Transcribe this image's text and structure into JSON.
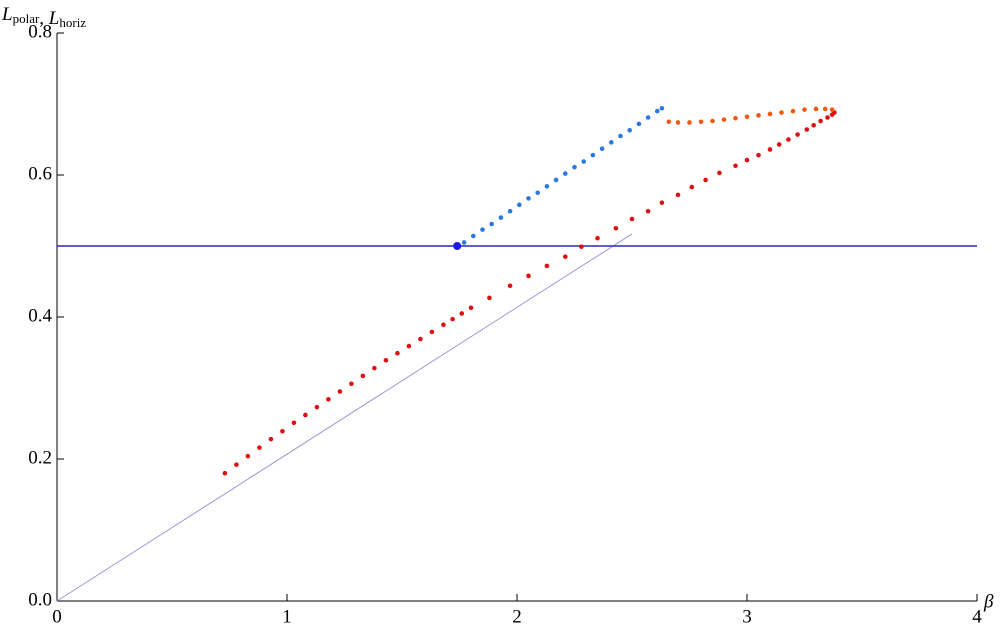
{
  "chart_data": {
    "type": "scatter",
    "ylabel": [
      {
        "symbol": "L",
        "subscript": "polar"
      },
      {
        "symbol": "L",
        "subscript": "horiz"
      }
    ],
    "ylabel_separator": ", ",
    "xlabel": "β",
    "xlim": [
      0,
      4
    ],
    "ylim": [
      0,
      0.8
    ],
    "xticks": [
      0,
      1,
      2,
      3,
      4
    ],
    "yticks": [
      {
        "value": 0,
        "label": "0.0"
      },
      0.2,
      0.4,
      0.6,
      0.8
    ],
    "grid": false,
    "series": [
      {
        "mode": "line",
        "color": "#9a9ad8",
        "width": 1,
        "x": [
          0,
          2.5
        ],
        "y": [
          0,
          0.517
        ]
      },
      {
        "mode": "line",
        "color": "#2a2ab4",
        "width": 1.5,
        "x": [
          0,
          4
        ],
        "y": [
          0.5,
          0.5
        ]
      },
      {
        "mode": "markers",
        "color": "#e01010",
        "radius": 2.3,
        "x": [
          0.73,
          0.78,
          0.83,
          0.88,
          0.93,
          0.98,
          1.03,
          1.08,
          1.13,
          1.18,
          1.23,
          1.28,
          1.33,
          1.38,
          1.43,
          1.48,
          1.53,
          1.58,
          1.63,
          1.68,
          1.72,
          1.76,
          1.8,
          1.88,
          1.97,
          2.05,
          2.13,
          2.21,
          2.28,
          2.35,
          2.43,
          2.5,
          2.57,
          2.63,
          2.7,
          2.76,
          2.82,
          2.88,
          2.95,
          3.0,
          3.05,
          3.1,
          3.14,
          3.18,
          3.22,
          3.26,
          3.29,
          3.32,
          3.35,
          3.37,
          3.38
        ],
        "y": [
          0.18,
          0.192,
          0.204,
          0.216,
          0.228,
          0.239,
          0.251,
          0.262,
          0.273,
          0.284,
          0.295,
          0.306,
          0.317,
          0.328,
          0.339,
          0.349,
          0.359,
          0.369,
          0.379,
          0.389,
          0.397,
          0.405,
          0.413,
          0.427,
          0.444,
          0.458,
          0.472,
          0.485,
          0.499,
          0.511,
          0.525,
          0.538,
          0.549,
          0.561,
          0.572,
          0.583,
          0.593,
          0.603,
          0.613,
          0.621,
          0.628,
          0.636,
          0.643,
          0.65,
          0.657,
          0.664,
          0.67,
          0.676,
          0.681,
          0.685,
          0.688
        ]
      },
      {
        "mode": "markers",
        "color": "#f05a10",
        "radius": 2.3,
        "x": [
          2.66,
          2.7,
          2.75,
          2.8,
          2.85,
          2.9,
          2.95,
          3.0,
          3.05,
          3.1,
          3.15,
          3.2,
          3.25,
          3.3,
          3.34,
          3.37
        ],
        "y": [
          0.675,
          0.674,
          0.674,
          0.675,
          0.676,
          0.678,
          0.68,
          0.682,
          0.684,
          0.686,
          0.688,
          0.69,
          0.692,
          0.693,
          0.693,
          0.692
        ]
      },
      {
        "mode": "markers",
        "color": "#2a78e0",
        "radius": 2.3,
        "x": [
          1.77,
          1.81,
          1.85,
          1.89,
          1.93,
          1.97,
          2.01,
          2.05,
          2.09,
          2.13,
          2.17,
          2.21,
          2.25,
          2.29,
          2.33,
          2.37,
          2.41,
          2.45,
          2.49,
          2.53,
          2.57,
          2.61,
          2.63
        ],
        "y": [
          0.505,
          0.514,
          0.523,
          0.531,
          0.54,
          0.549,
          0.558,
          0.567,
          0.575,
          0.584,
          0.593,
          0.602,
          0.611,
          0.619,
          0.628,
          0.637,
          0.646,
          0.655,
          0.663,
          0.672,
          0.681,
          0.69,
          0.694
        ]
      },
      {
        "mode": "markers",
        "color": "#1a1ae8",
        "radius": 4,
        "x": [
          1.74
        ],
        "y": [
          0.5
        ]
      }
    ]
  }
}
